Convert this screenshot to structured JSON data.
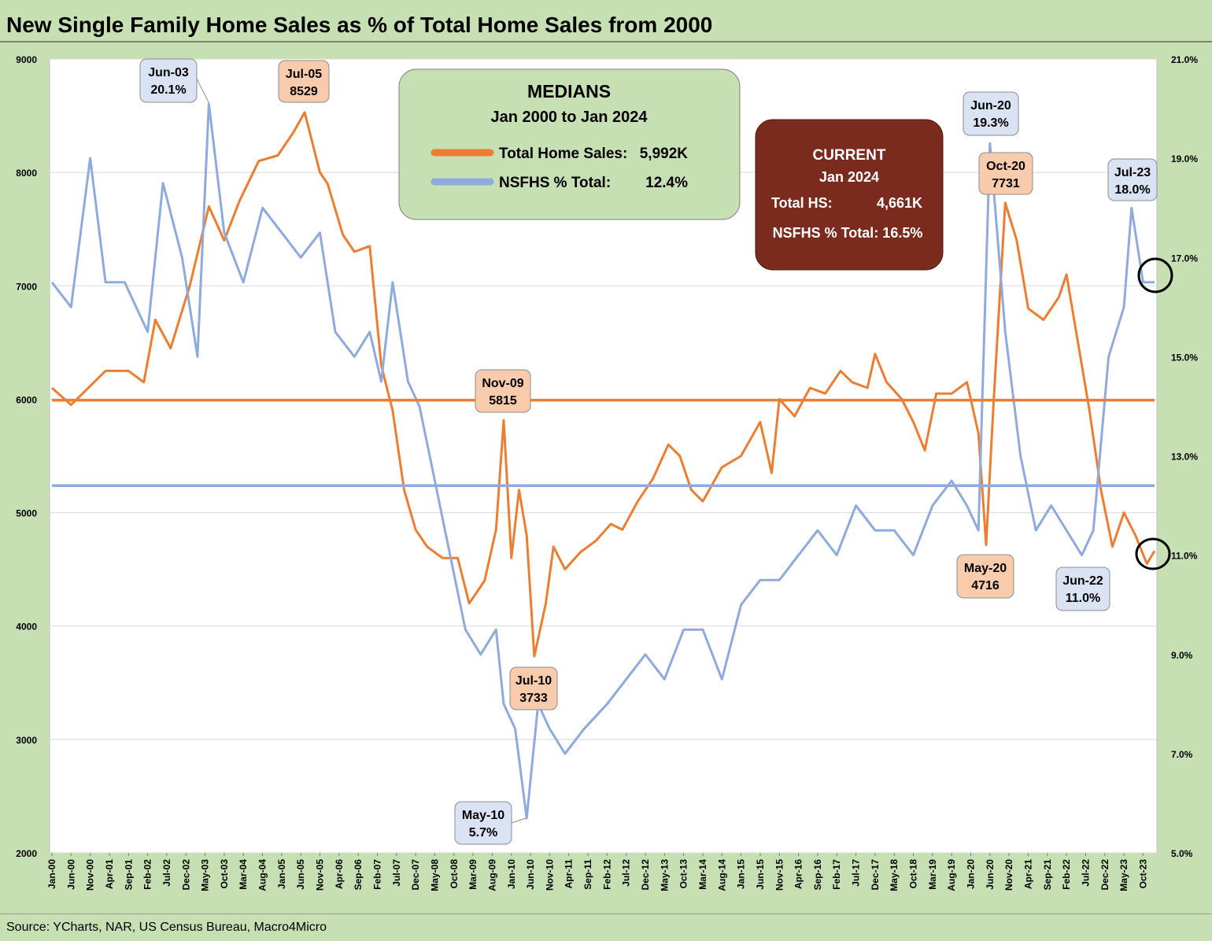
{
  "title": "New Single Family Home Sales as % of Total Home Sales from 2000",
  "source": "Source: YCharts, NAR, US Census Bureau, Macro4Micro",
  "colors": {
    "background": "#c6e0b4",
    "plot": "#ffffff",
    "orange": "#ed7d31",
    "blue": "#8faadc",
    "current_box": "#7b2b1d"
  },
  "medians": {
    "title": "MEDIANS",
    "period": "Jan 2000 to Jan 2024",
    "rows": [
      {
        "label": "Total Home Sales:",
        "value": "5,992K"
      },
      {
        "label": "NSFHS % Total:",
        "value": "12.4%"
      }
    ]
  },
  "current": {
    "title": "CURRENT",
    "period": "Jan 2024",
    "row1_label": "Total HS:",
    "row1_value": "4,661K",
    "row2": "NSFHS % Total:  16.5%"
  },
  "chart_data": {
    "type": "line",
    "title": "New Single Family Home Sales as % of Total Home Sales from 2000",
    "x_start": "2000-01",
    "x_end": "2024-01",
    "x_tick_labels": [
      "Jan-00",
      "Jun-00",
      "Nov-00",
      "Apr-01",
      "Sep-01",
      "Feb-02",
      "Jul-02",
      "Dec-02",
      "May-03",
      "Oct-03",
      "Mar-04",
      "Aug-04",
      "Jan-05",
      "Jun-05",
      "Nov-05",
      "Apr-06",
      "Sep-06",
      "Feb-07",
      "Jul-07",
      "Dec-07",
      "May-08",
      "Oct-08",
      "Mar-09",
      "Aug-09",
      "Jan-10",
      "Jun-10",
      "Nov-10",
      "Apr-11",
      "Sep-11",
      "Feb-12",
      "Jul-12",
      "Dec-12",
      "May-13",
      "Oct-13",
      "Mar-14",
      "Aug-14",
      "Jan-15",
      "Jun-15",
      "Nov-15",
      "Apr-16",
      "Sep-16",
      "Feb-17",
      "Jul-17",
      "Dec-17",
      "May-18",
      "Oct-18",
      "Mar-19",
      "Aug-19",
      "Jan-20",
      "Jun-20",
      "Nov-20",
      "Apr-21",
      "Sep-21",
      "Feb-22",
      "Jul-22",
      "Dec-22",
      "May-23",
      "Oct-23"
    ],
    "y_left": {
      "range": [
        2000,
        9000
      ],
      "ticks": [
        "2000",
        "3000",
        "4000",
        "5000",
        "6000",
        "7000",
        "8000",
        "9000"
      ]
    },
    "y_right": {
      "range": [
        5.0,
        21.0
      ],
      "ticks": [
        "5.0%",
        "7.0%",
        "9.0%",
        "11.0%",
        "13.0%",
        "15.0%",
        "17.0%",
        "19.0%",
        "21.0%"
      ]
    },
    "grid": "horizontal",
    "series": [
      {
        "axis": "left",
        "color": "#ed7d31",
        "points": [
          [
            "2000-01",
            6100
          ],
          [
            "2000-06",
            5950
          ],
          [
            "2000-12",
            6150
          ],
          [
            "2001-03",
            6250
          ],
          [
            "2001-09",
            6250
          ],
          [
            "2002-01",
            6150
          ],
          [
            "2002-04",
            6700
          ],
          [
            "2002-08",
            6450
          ],
          [
            "2003-01",
            7000
          ],
          [
            "2003-06",
            7700
          ],
          [
            "2003-10",
            7400
          ],
          [
            "2004-02",
            7750
          ],
          [
            "2004-07",
            8100
          ],
          [
            "2004-12",
            8150
          ],
          [
            "2005-04",
            8350
          ],
          [
            "2005-07",
            8529
          ],
          [
            "2005-11",
            8000
          ],
          [
            "2006-01",
            7900
          ],
          [
            "2006-05",
            7450
          ],
          [
            "2006-08",
            7300
          ],
          [
            "2006-12",
            7350
          ],
          [
            "2007-03",
            6300
          ],
          [
            "2007-06",
            5900
          ],
          [
            "2007-09",
            5200
          ],
          [
            "2007-12",
            4850
          ],
          [
            "2008-03",
            4700
          ],
          [
            "2008-07",
            4600
          ],
          [
            "2008-11",
            4600
          ],
          [
            "2009-02",
            4200
          ],
          [
            "2009-06",
            4400
          ],
          [
            "2009-09",
            4850
          ],
          [
            "2009-11",
            5815
          ],
          [
            "2010-01",
            4600
          ],
          [
            "2010-03",
            5200
          ],
          [
            "2010-05",
            4800
          ],
          [
            "2010-07",
            3733
          ],
          [
            "2010-10",
            4200
          ],
          [
            "2010-12",
            4700
          ],
          [
            "2011-03",
            4500
          ],
          [
            "2011-07",
            4650
          ],
          [
            "2011-11",
            4750
          ],
          [
            "2012-03",
            4900
          ],
          [
            "2012-06",
            4850
          ],
          [
            "2012-10",
            5100
          ],
          [
            "2013-02",
            5300
          ],
          [
            "2013-06",
            5600
          ],
          [
            "2013-09",
            5500
          ],
          [
            "2013-12",
            5200
          ],
          [
            "2014-03",
            5100
          ],
          [
            "2014-08",
            5400
          ],
          [
            "2015-01",
            5500
          ],
          [
            "2015-06",
            5800
          ],
          [
            "2015-09",
            5350
          ],
          [
            "2015-11",
            6000
          ],
          [
            "2016-03",
            5850
          ],
          [
            "2016-07",
            6100
          ],
          [
            "2016-11",
            6050
          ],
          [
            "2017-03",
            6250
          ],
          [
            "2017-06",
            6150
          ],
          [
            "2017-10",
            6100
          ],
          [
            "2017-12",
            6400
          ],
          [
            "2018-03",
            6150
          ],
          [
            "2018-07",
            6000
          ],
          [
            "2018-10",
            5800
          ],
          [
            "2019-01",
            5550
          ],
          [
            "2019-04",
            6050
          ],
          [
            "2019-08",
            6050
          ],
          [
            "2019-12",
            6150
          ],
          [
            "2020-03",
            5700
          ],
          [
            "2020-05",
            4716
          ],
          [
            "2020-07",
            6000
          ],
          [
            "2020-10",
            7731
          ],
          [
            "2021-01",
            7400
          ],
          [
            "2021-04",
            6800
          ],
          [
            "2021-08",
            6700
          ],
          [
            "2021-12",
            6900
          ],
          [
            "2022-02",
            7100
          ],
          [
            "2022-05",
            6500
          ],
          [
            "2022-08",
            5900
          ],
          [
            "2022-11",
            5200
          ],
          [
            "2023-02",
            4700
          ],
          [
            "2023-05",
            5000
          ],
          [
            "2023-08",
            4800
          ],
          [
            "2023-11",
            4550
          ],
          [
            "2024-01",
            4661
          ]
        ]
      },
      {
        "axis": "right",
        "color": "#8faadc",
        "points": [
          [
            "2000-01",
            16.5
          ],
          [
            "2000-06",
            16.0
          ],
          [
            "2000-11",
            19.0
          ],
          [
            "2001-03",
            16.5
          ],
          [
            "2001-08",
            16.5
          ],
          [
            "2002-02",
            15.5
          ],
          [
            "2002-06",
            18.5
          ],
          [
            "2002-11",
            17.0
          ],
          [
            "2003-03",
            15.0
          ],
          [
            "2003-06",
            20.1
          ],
          [
            "2003-10",
            17.5
          ],
          [
            "2004-03",
            16.5
          ],
          [
            "2004-08",
            18.0
          ],
          [
            "2005-01",
            17.5
          ],
          [
            "2005-06",
            17.0
          ],
          [
            "2005-11",
            17.5
          ],
          [
            "2006-03",
            15.5
          ],
          [
            "2006-08",
            15.0
          ],
          [
            "2006-12",
            15.5
          ],
          [
            "2007-03",
            14.5
          ],
          [
            "2007-06",
            16.5
          ],
          [
            "2007-10",
            14.5
          ],
          [
            "2008-01",
            14.0
          ],
          [
            "2008-05",
            12.5
          ],
          [
            "2008-09",
            11.0
          ],
          [
            "2009-01",
            9.5
          ],
          [
            "2009-05",
            9.0
          ],
          [
            "2009-09",
            9.5
          ],
          [
            "2009-11",
            8.0
          ],
          [
            "2010-02",
            7.5
          ],
          [
            "2010-05",
            5.7
          ],
          [
            "2010-08",
            8.0
          ],
          [
            "2010-11",
            7.5
          ],
          [
            "2011-03",
            7.0
          ],
          [
            "2011-08",
            7.5
          ],
          [
            "2012-02",
            8.0
          ],
          [
            "2012-07",
            8.5
          ],
          [
            "2012-12",
            9.0
          ],
          [
            "2013-05",
            8.5
          ],
          [
            "2013-10",
            9.5
          ],
          [
            "2014-03",
            9.5
          ],
          [
            "2014-08",
            8.5
          ],
          [
            "2015-01",
            10.0
          ],
          [
            "2015-06",
            10.5
          ],
          [
            "2015-11",
            10.5
          ],
          [
            "2016-04",
            11.0
          ],
          [
            "2016-09",
            11.5
          ],
          [
            "2017-02",
            11.0
          ],
          [
            "2017-07",
            12.0
          ],
          [
            "2017-12",
            11.5
          ],
          [
            "2018-05",
            11.5
          ],
          [
            "2018-10",
            11.0
          ],
          [
            "2019-03",
            12.0
          ],
          [
            "2019-08",
            12.5
          ],
          [
            "2019-12",
            12.0
          ],
          [
            "2020-03",
            11.5
          ],
          [
            "2020-06",
            19.3
          ],
          [
            "2020-10",
            15.5
          ],
          [
            "2021-02",
            13.0
          ],
          [
            "2021-06",
            11.5
          ],
          [
            "2021-10",
            12.0
          ],
          [
            "2022-02",
            11.5
          ],
          [
            "2022-06",
            11.0
          ],
          [
            "2022-09",
            11.5
          ],
          [
            "2023-01",
            15.0
          ],
          [
            "2023-05",
            16.0
          ],
          [
            "2023-07",
            18.0
          ],
          [
            "2023-10",
            16.5
          ],
          [
            "2024-01",
            16.5
          ]
        ]
      },
      {
        "axis": "left",
        "color": "#ed7d31",
        "points": [
          [
            "2000-01",
            5992
          ],
          [
            "2024-01",
            5992
          ]
        ]
      },
      {
        "axis": "right",
        "color": "#8faadc",
        "points": [
          [
            "2000-01",
            12.4
          ],
          [
            "2024-01",
            12.4
          ]
        ]
      }
    ],
    "annotations": [
      {
        "top": "Jun-03",
        "bottom": "20.1%",
        "style": "blue"
      },
      {
        "top": "Jul-05",
        "bottom": "8529",
        "style": "orange"
      },
      {
        "top": "Nov-09",
        "bottom": "5815",
        "style": "orange"
      },
      {
        "top": "Jul-10",
        "bottom": "3733",
        "style": "orange"
      },
      {
        "top": "May-10",
        "bottom": "5.7%",
        "style": "blue"
      },
      {
        "top": "Jun-20",
        "bottom": "19.3%",
        "style": "blue"
      },
      {
        "top": "Oct-20",
        "bottom": "7731",
        "style": "orange"
      },
      {
        "top": "May-20",
        "bottom": "4716",
        "style": "orange"
      },
      {
        "top": "Jun-22",
        "bottom": "11.0%",
        "style": "blue"
      },
      {
        "top": "Jul-23",
        "bottom": "18.0%",
        "style": "blue"
      }
    ]
  }
}
